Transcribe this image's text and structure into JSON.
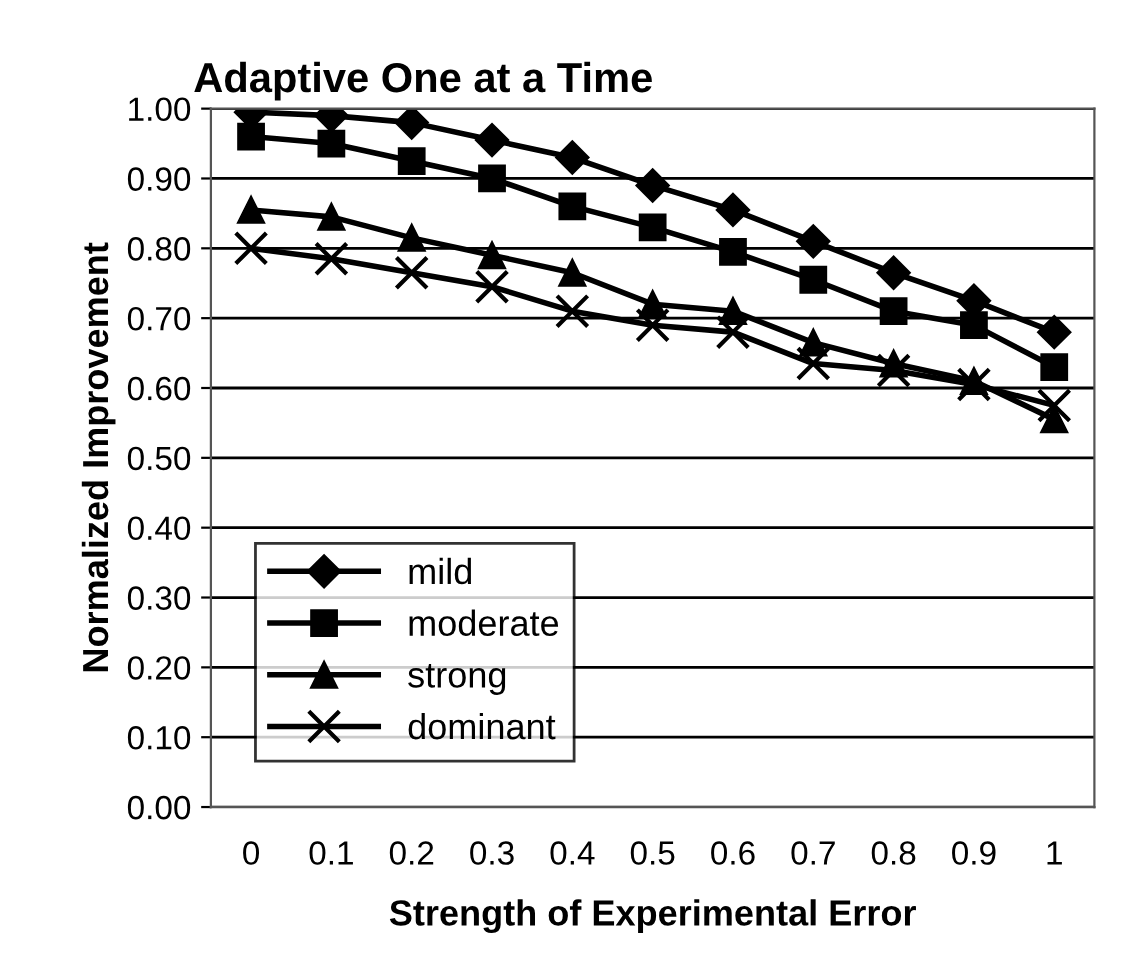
{
  "chart_data": {
    "type": "line",
    "title": "Adaptive One at a Time",
    "xlabel": "Strength of Experimental Error",
    "ylabel": "Normalized Improvement",
    "categories": [
      "0",
      "0.1",
      "0.2",
      "0.3",
      "0.4",
      "0.5",
      "0.6",
      "0.7",
      "0.8",
      "0.9",
      "1"
    ],
    "series": [
      {
        "name": "mild",
        "color": "#000000",
        "marker": "diamond",
        "values": [
          0.995,
          0.99,
          0.98,
          0.955,
          0.93,
          0.89,
          0.855,
          0.81,
          0.765,
          0.725,
          0.68
        ]
      },
      {
        "name": "moderate",
        "color": "#000000",
        "marker": "square",
        "values": [
          0.96,
          0.95,
          0.925,
          0.9,
          0.86,
          0.83,
          0.795,
          0.755,
          0.71,
          0.69,
          0.63
        ]
      },
      {
        "name": "strong",
        "color": "#000000",
        "marker": "triangle",
        "values": [
          0.855,
          0.845,
          0.815,
          0.79,
          0.765,
          0.72,
          0.71,
          0.665,
          0.635,
          0.61,
          0.555
        ]
      },
      {
        "name": "dominant",
        "color": "#000000",
        "marker": "cross",
        "values": [
          0.8,
          0.785,
          0.765,
          0.745,
          0.71,
          0.69,
          0.68,
          0.635,
          0.625,
          0.605,
          0.575
        ]
      }
    ],
    "ylim": [
      0,
      1
    ],
    "yticks": [
      {
        "value": 0,
        "label": "0.00"
      },
      {
        "value": 0.1,
        "label": "0.10"
      },
      {
        "value": 0.2,
        "label": "0.20"
      },
      {
        "value": 0.3,
        "label": "0.30"
      },
      {
        "value": 0.4,
        "label": "0.40"
      },
      {
        "value": 0.5,
        "label": "0.50"
      },
      {
        "value": 0.6,
        "label": "0.60"
      },
      {
        "value": 0.7,
        "label": "0.70"
      },
      {
        "value": 0.8,
        "label": "0.80"
      },
      {
        "value": 0.9,
        "label": "0.90"
      },
      {
        "value": 1,
        "label": "1.00"
      }
    ],
    "grid": "y",
    "legend": "bottom left",
    "line_style": "solid"
  }
}
